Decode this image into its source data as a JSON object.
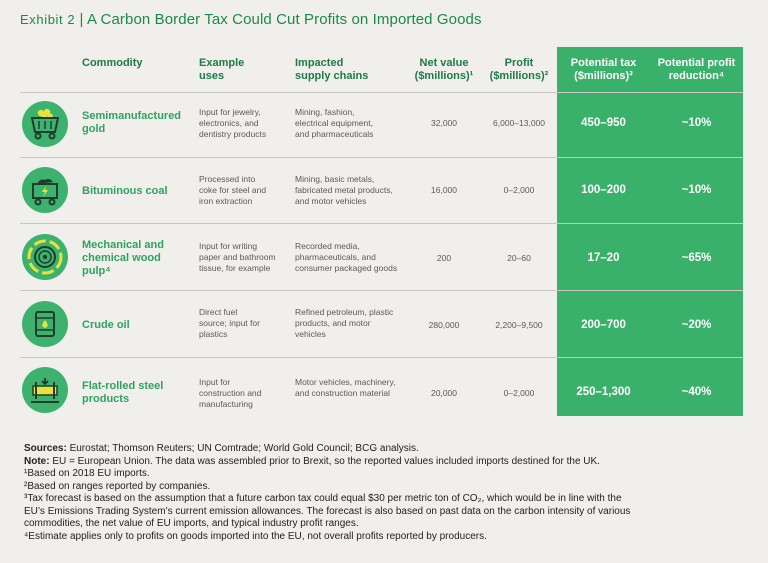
{
  "exhibit": {
    "label": "Exhibit 2",
    "separator": "|",
    "title": "A Carbon Border Tax Could Cut Profits on Imported Goods"
  },
  "headers": {
    "commodity": "Commodity",
    "uses_1": "Example",
    "uses_2": "uses",
    "chains_1": "Impacted",
    "chains_2": "supply chains",
    "net_1": "Net value",
    "net_2": "($millions)¹",
    "profit_1": "Profit",
    "profit_2": "($millions)²",
    "tax_1": "Potential tax",
    "tax_2": "($millions)³",
    "red_1": "Potential profit",
    "red_2": "reduction⁴"
  },
  "rows": [
    {
      "icon": "gold-cart-icon",
      "commodity": [
        "Semimanufactured",
        "gold"
      ],
      "uses": [
        "Input for jewelry,",
        "electronics, and",
        "dentistry products"
      ],
      "chains": [
        "Mining, fashion,",
        "electrical equipment,",
        "and pharmaceuticals"
      ],
      "net": "32,000",
      "profit": "6,000–13,000",
      "tax": "450–950",
      "reduction": "~10%"
    },
    {
      "icon": "coal-cart-icon",
      "commodity": [
        "Bituminous coal"
      ],
      "uses": [
        "Processed into",
        "coke for steel and",
        "iron extraction"
      ],
      "chains": [
        "Mining, basic metals,",
        "fabricated metal products,",
        "and motor vehicles"
      ],
      "net": "16,000",
      "profit": "0–2,000",
      "tax": "100–200",
      "reduction": "~10%"
    },
    {
      "icon": "wood-log-icon",
      "commodity": [
        "Mechanical and",
        "chemical wood",
        "pulp⁴"
      ],
      "uses": [
        "Input for writing",
        "paper and bathroom",
        "tissue, for example"
      ],
      "chains": [
        "Recorded media,",
        "pharmaceuticals, and",
        "consumer packaged goods"
      ],
      "net": "200",
      "profit": "20–60",
      "tax": "17–20",
      "reduction": "~65%"
    },
    {
      "icon": "oil-barrel-icon",
      "commodity": [
        "Crude oil"
      ],
      "uses": [
        "Direct fuel",
        "source; input for",
        "plastics"
      ],
      "chains": [
        "Refined petroleum, plastic",
        "products, and motor",
        "vehicles"
      ],
      "net": "280,000",
      "profit": "2,200–9,500",
      "tax": "200–700",
      "reduction": "~20%"
    },
    {
      "icon": "steel-roll-icon",
      "commodity": [
        "Flat-rolled steel",
        "products"
      ],
      "uses": [
        "Input for",
        "construction and",
        "manufacturing"
      ],
      "chains": [
        "Motor vehicles, machinery,",
        "and construction material"
      ],
      "net": "20,000",
      "profit": "0–2,000",
      "tax": "250–1,300",
      "reduction": "~40%"
    }
  ],
  "notes": {
    "sources_label": "Sources:",
    "sources_text": " Eurostat; Thomson Reuters; UN Comtrade; World Gold Council; BCG analysis.",
    "note_label": "Note:",
    "note_text": " EU = European Union. The data was assembled prior to Brexit, so the reported values included imports destined for the UK.",
    "fn1": "¹Based on 2018 EU imports.",
    "fn2": "²Based on ranges reported by companies.",
    "fn3_a": "³Tax forecast is based on the assumption that a future carbon tax could equal $30 per metric ton of CO₂, which would be in line with the",
    "fn3_b": "EU’s Emissions Trading System’s current emission allowances. The forecast is also based on past data on the carbon intensity of various",
    "fn3_c": "commodities, the net value of EU imports, and typical industry profit ranges.",
    "fn4": "⁴Estimate applies only to profits on goods imported into the EU, not overall profits reported by producers."
  }
}
